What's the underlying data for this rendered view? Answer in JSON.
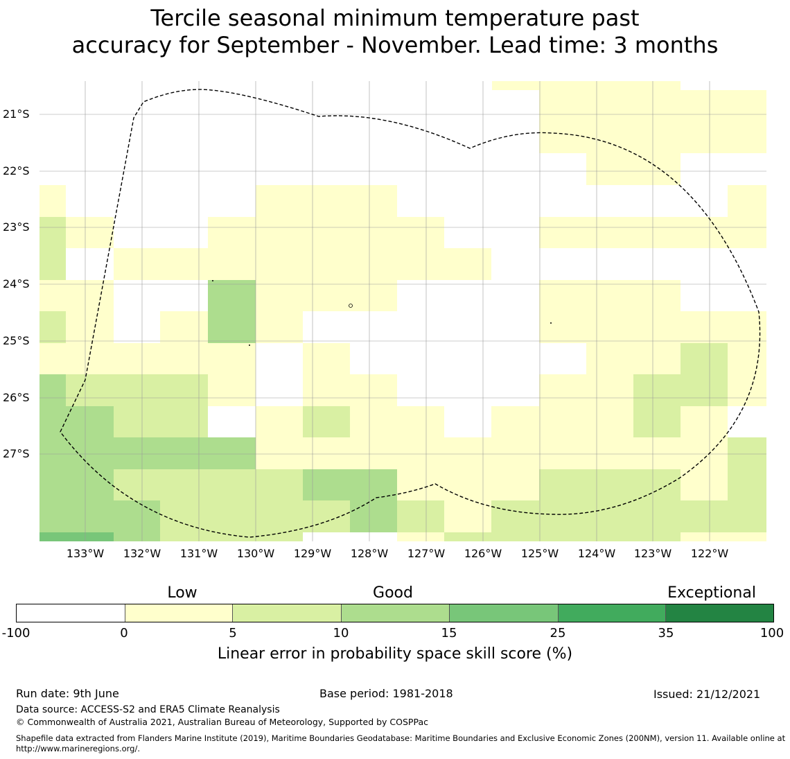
{
  "title": {
    "line1": "Tercile seasonal minimum temperature past",
    "line2": "accuracy for September - November. Lead time: 3 months"
  },
  "map": {
    "lat_labels": [
      "21°S",
      "22°S",
      "23°S",
      "24°S",
      "25°S",
      "26°S",
      "27°S"
    ],
    "lon_labels": [
      "133°W",
      "132°W",
      "131°W",
      "130°W",
      "129°W",
      "128°W",
      "127°W",
      "126°W",
      "125°W",
      "124°W",
      "123°W",
      "122°W"
    ],
    "boundary_style": "dashed",
    "legend_colors": {
      "cat_m100_0": "#ffffff",
      "cat_0_5": "#ffffcc",
      "cat_5_10": "#d9f0a3",
      "cat_10_15": "#addd8e",
      "cat_15_25": "#78c679",
      "cat_25_35": "#41ab5d",
      "cat_35_100": "#238443"
    }
  },
  "colorbar": {
    "category_labels": [
      "Low",
      "Good",
      "Exceptional"
    ],
    "ticks": [
      "-100",
      "0",
      "5",
      "10",
      "15",
      "25",
      "35",
      "100"
    ],
    "colors": [
      "#ffffff",
      "#ffffcc",
      "#d9f0a3",
      "#addd8e",
      "#78c679",
      "#41ab5d",
      "#238443"
    ],
    "label": "Linear error in probability space skill score (%)"
  },
  "footer": {
    "run_date": "Run date: 9th June",
    "base_period": "Base period: 1981-2018",
    "issued": "Issued: 21/12/2021",
    "data_source": "Data source: ACCESS-S2 and ERA5 Climate Reanalysis",
    "copyright": "© Commonwealth of Australia 2021, Australian Bureau of Meteorology, Supported by COSPPac",
    "shapefile": "Shapefile data extracted from Flanders Marine Institute (2019), Maritime Boundaries Geodatabase: Maritime Boundaries and Exclusive Economic Zones (200NM), version 11. Available online at http://www.marineregions.org/."
  }
}
